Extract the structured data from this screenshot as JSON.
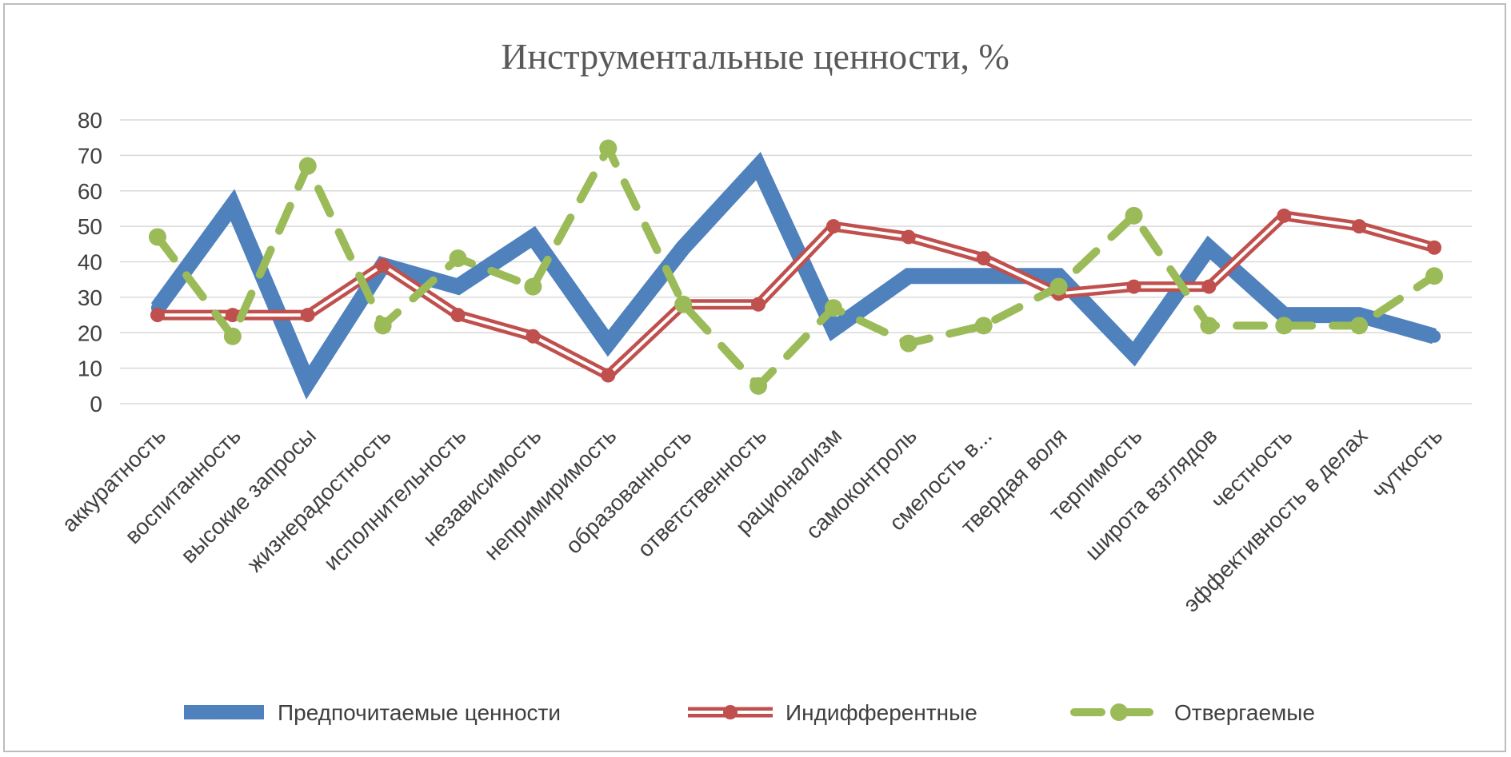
{
  "chart_data": {
    "type": "line",
    "title": "Инструментальные ценности, %",
    "xlabel": "",
    "ylabel": "",
    "ylim": [
      0,
      80
    ],
    "yticks": [
      "0",
      "10",
      "20",
      "30",
      "40",
      "50",
      "60",
      "70",
      "80"
    ],
    "grid": true,
    "legend_position": "bottom",
    "categories": [
      "аккуратность",
      "воспитанность",
      "высокие запросы",
      "жизнерадостность",
      "исполнительность",
      "независимость",
      "непримиримость",
      "образованность",
      "ответственность",
      "рационализм",
      "самоконтроль",
      "смелость в...",
      "твердая воля",
      "терпимость",
      "широта взглядов",
      "честность",
      "эффективность в делах",
      "чуткость"
    ],
    "series": [
      {
        "name": "Предпочитаемые ценности",
        "color": "#4f81bd",
        "style": "solid-thick",
        "values": [
          27,
          56,
          6,
          39,
          33,
          47,
          17,
          44,
          67,
          21,
          36,
          36,
          36,
          14,
          44,
          25,
          25,
          19
        ]
      },
      {
        "name": "Индифферентные",
        "color": "#c0504d",
        "style": "double-with-markers",
        "values": [
          25,
          25,
          25,
          39,
          25,
          19,
          8,
          28,
          28,
          50,
          47,
          41,
          31,
          33,
          33,
          53,
          50,
          44
        ]
      },
      {
        "name": "Отвергаемые",
        "color": "#9bbb59",
        "style": "dashed-with-markers",
        "values": [
          47,
          19,
          67,
          22,
          41,
          33,
          72,
          28,
          5,
          27,
          17,
          22,
          33,
          53,
          22,
          22,
          22,
          36
        ]
      }
    ]
  }
}
